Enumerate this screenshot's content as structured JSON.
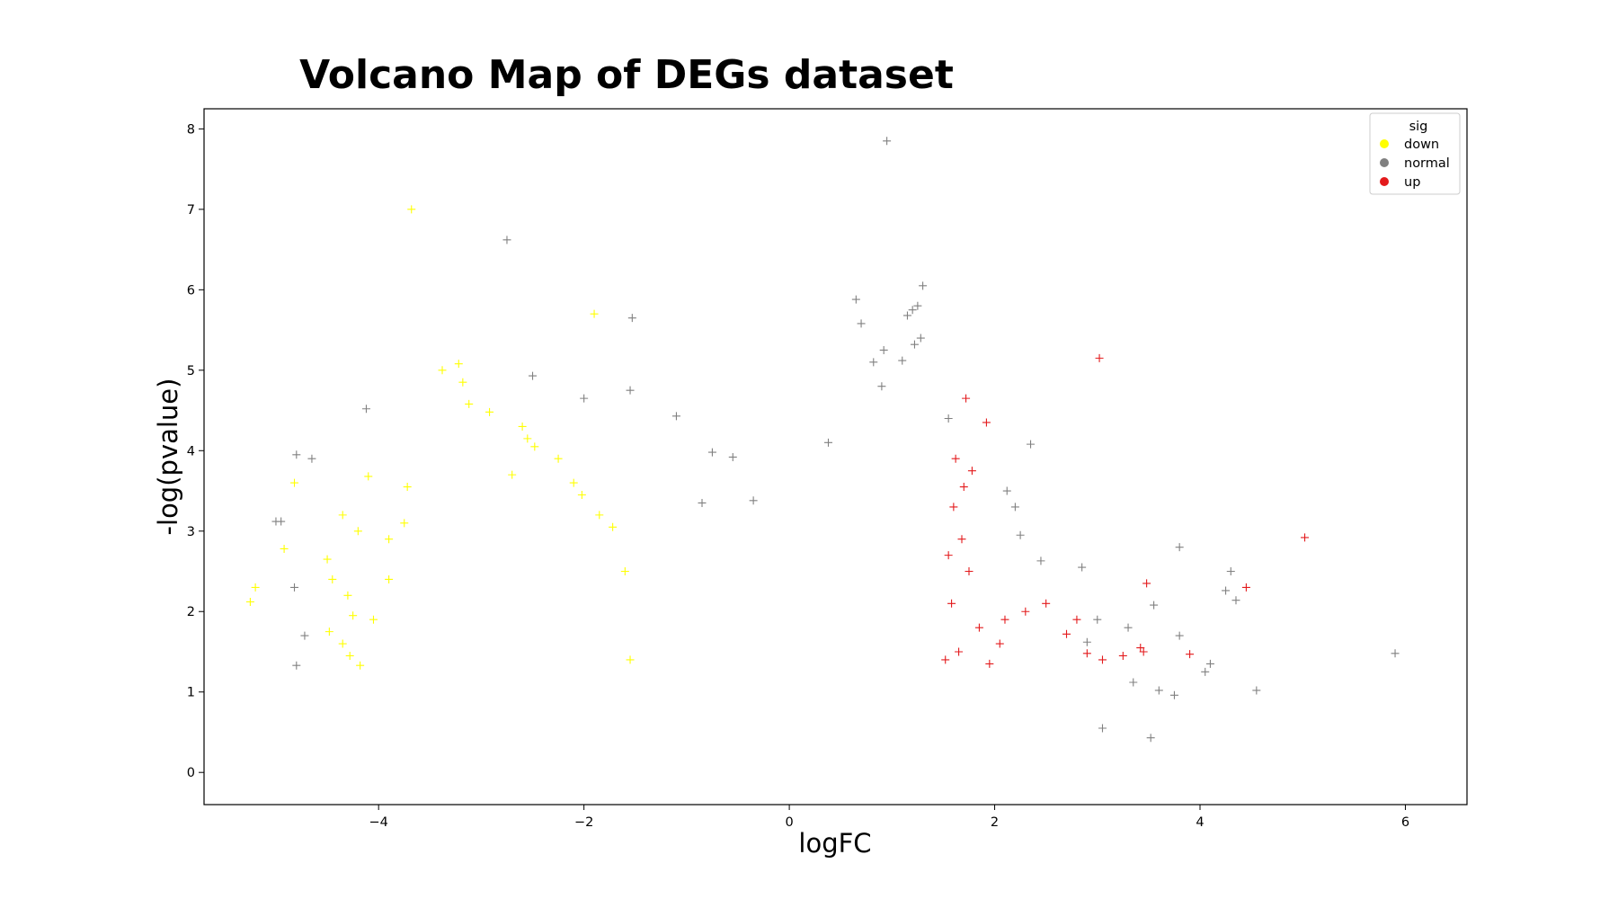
{
  "chart_data": {
    "type": "scatter",
    "title": "Volcano Map of DEGs dataset",
    "xlabel": "logFC",
    "ylabel": "-log(pvalue)",
    "xlim": [
      -5.7,
      6.6
    ],
    "ylim": [
      -0.4,
      8.25
    ],
    "xticks": [
      -4,
      -2,
      0,
      2,
      4,
      6
    ],
    "xtick_labels": [
      "−4",
      "−2",
      "0",
      "2",
      "4",
      "6"
    ],
    "yticks": [
      0,
      1,
      2,
      3,
      4,
      5,
      6,
      7,
      8
    ],
    "ytick_labels": [
      "0",
      "1",
      "2",
      "3",
      "4",
      "5",
      "6",
      "7",
      "8"
    ],
    "marker": "+",
    "legend": {
      "title": "sig",
      "position": "top-right",
      "entries": [
        {
          "label": "down",
          "color": "#ffff00"
        },
        {
          "label": "normal",
          "color": "#808080"
        },
        {
          "label": "up",
          "color": "#e31a1c"
        }
      ]
    },
    "thresholds": {
      "logFC_abs": 1.5,
      "neg_log_pvalue": 1.3
    },
    "series": [
      {
        "name": "down",
        "color": "#ffff00",
        "points": [
          [
            -3.68,
            7.0
          ],
          [
            -1.9,
            5.7
          ],
          [
            -3.22,
            5.08
          ],
          [
            -3.38,
            5.0
          ],
          [
            -3.18,
            4.85
          ],
          [
            -3.12,
            4.58
          ],
          [
            -2.92,
            4.48
          ],
          [
            -2.6,
            4.3
          ],
          [
            -2.55,
            4.15
          ],
          [
            -2.48,
            4.05
          ],
          [
            -4.1,
            3.68
          ],
          [
            -3.72,
            3.55
          ],
          [
            -4.82,
            3.6
          ],
          [
            -4.35,
            3.2
          ],
          [
            -4.2,
            3.0
          ],
          [
            -4.5,
            2.65
          ],
          [
            -4.45,
            2.4
          ],
          [
            -5.2,
            2.3
          ],
          [
            -5.25,
            2.12
          ],
          [
            -4.3,
            2.2
          ],
          [
            -4.25,
            1.95
          ],
          [
            -4.48,
            1.75
          ],
          [
            -4.35,
            1.6
          ],
          [
            -4.28,
            1.45
          ],
          [
            -4.18,
            1.33
          ],
          [
            -4.05,
            1.9
          ],
          [
            -3.9,
            2.4
          ],
          [
            -3.75,
            3.1
          ],
          [
            -2.25,
            3.9
          ],
          [
            -2.1,
            3.6
          ],
          [
            -2.02,
            3.45
          ],
          [
            -1.85,
            3.2
          ],
          [
            -1.72,
            3.05
          ],
          [
            -1.6,
            2.5
          ],
          [
            -1.55,
            1.4
          ],
          [
            -4.92,
            2.78
          ],
          [
            -3.9,
            2.9
          ],
          [
            -2.7,
            3.7
          ]
        ]
      },
      {
        "name": "normal",
        "color": "#808080",
        "points": [
          [
            0.95,
            7.85
          ],
          [
            -2.75,
            6.62
          ],
          [
            1.3,
            6.05
          ],
          [
            1.25,
            5.8
          ],
          [
            1.2,
            5.75
          ],
          [
            0.65,
            5.88
          ],
          [
            1.15,
            5.68
          ],
          [
            0.7,
            5.58
          ],
          [
            -1.53,
            5.65
          ],
          [
            1.28,
            5.4
          ],
          [
            1.22,
            5.32
          ],
          [
            0.92,
            5.25
          ],
          [
            0.82,
            5.1
          ],
          [
            1.1,
            5.12
          ],
          [
            -2.5,
            4.93
          ],
          [
            0.9,
            4.8
          ],
          [
            -1.55,
            4.75
          ],
          [
            -4.12,
            4.52
          ],
          [
            -2.0,
            4.65
          ],
          [
            -1.1,
            4.43
          ],
          [
            0.38,
            4.1
          ],
          [
            1.55,
            4.4
          ],
          [
            -4.8,
            3.95
          ],
          [
            -4.65,
            3.9
          ],
          [
            -0.75,
            3.98
          ],
          [
            -0.55,
            3.92
          ],
          [
            -0.85,
            3.35
          ],
          [
            -0.35,
            3.38
          ],
          [
            -5.0,
            3.12
          ],
          [
            -4.95,
            3.12
          ],
          [
            -4.82,
            2.3
          ],
          [
            -4.72,
            1.7
          ],
          [
            -4.8,
            1.33
          ],
          [
            3.8,
            2.8
          ],
          [
            4.3,
            2.5
          ],
          [
            4.25,
            2.26
          ],
          [
            4.35,
            2.14
          ],
          [
            5.9,
            1.48
          ],
          [
            4.55,
            1.02
          ],
          [
            4.1,
            1.35
          ],
          [
            4.05,
            1.25
          ],
          [
            3.52,
            0.43
          ],
          [
            3.8,
            1.7
          ],
          [
            3.3,
            1.8
          ],
          [
            3.55,
            2.08
          ],
          [
            3.0,
            1.9
          ],
          [
            2.9,
            1.62
          ],
          [
            3.05,
            0.55
          ],
          [
            3.6,
            1.02
          ],
          [
            3.35,
            1.12
          ],
          [
            3.75,
            0.96
          ],
          [
            2.85,
            2.55
          ],
          [
            2.25,
            2.95
          ],
          [
            2.2,
            3.3
          ],
          [
            2.12,
            3.5
          ],
          [
            2.45,
            2.63
          ],
          [
            2.35,
            4.08
          ]
        ]
      },
      {
        "name": "up",
        "color": "#e31a1c",
        "points": [
          [
            3.02,
            5.15
          ],
          [
            1.72,
            4.65
          ],
          [
            1.92,
            4.35
          ],
          [
            5.02,
            2.92
          ],
          [
            3.48,
            2.35
          ],
          [
            4.45,
            2.3
          ],
          [
            3.9,
            1.47
          ],
          [
            3.42,
            1.55
          ],
          [
            3.45,
            1.5
          ],
          [
            3.25,
            1.45
          ],
          [
            3.05,
            1.4
          ],
          [
            2.9,
            1.48
          ],
          [
            2.7,
            1.72
          ],
          [
            2.8,
            1.9
          ],
          [
            2.5,
            2.1
          ],
          [
            2.3,
            2.0
          ],
          [
            2.1,
            1.9
          ],
          [
            1.78,
            3.75
          ],
          [
            1.7,
            3.55
          ],
          [
            1.62,
            3.9
          ],
          [
            1.6,
            3.3
          ],
          [
            1.58,
            2.1
          ],
          [
            1.65,
            1.5
          ],
          [
            1.75,
            2.5
          ],
          [
            1.85,
            1.8
          ],
          [
            1.95,
            1.35
          ],
          [
            2.05,
            1.6
          ],
          [
            1.52,
            1.4
          ],
          [
            1.55,
            2.7
          ],
          [
            1.68,
            2.9
          ]
        ]
      }
    ]
  }
}
